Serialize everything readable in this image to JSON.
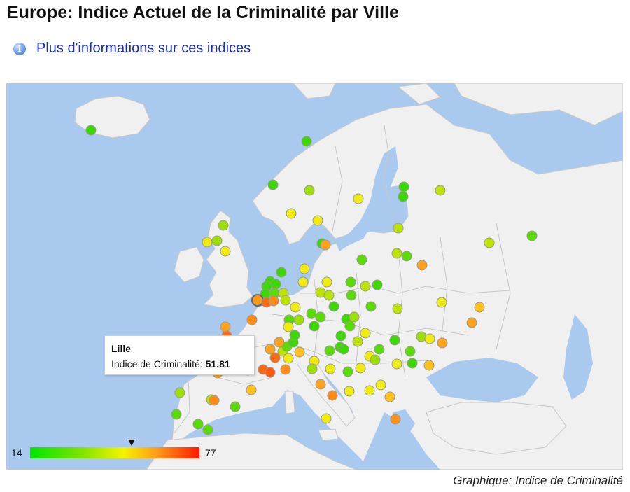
{
  "title": "Europe: Indice Actuel de la Criminalité par Ville",
  "info_link": {
    "icon": "info-icon",
    "label": "Plus d'informations sur ces indices"
  },
  "map": {
    "land_color": "#f0f0f0",
    "sea_color": "#aac9ee",
    "border_color": "#c8c8c8",
    "marker_stroke": "#9a9a9a",
    "color_scale": [
      "#00e600",
      "#7de400",
      "#f4f400",
      "#ff9a1a",
      "#ff1a00"
    ]
  },
  "tooltip": {
    "city": "Lille",
    "metric_label": "Indice de Criminalité:",
    "metric_value": "51.81"
  },
  "legend": {
    "min": "14",
    "max": "77",
    "selected_value": 51.81
  },
  "caption": "Graphique: Indice de Criminalité"
}
